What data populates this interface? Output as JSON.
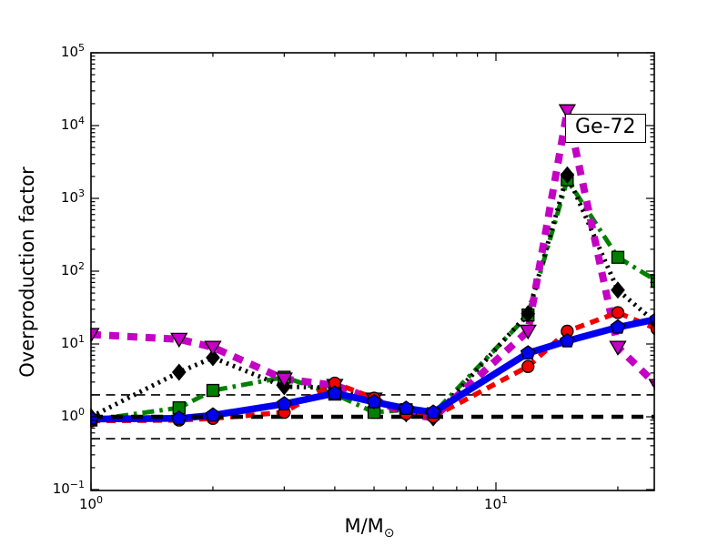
{
  "chart_data": {
    "type": "line",
    "title": "",
    "ylabel": "Overproduction factor",
    "xlabel_main": "M/M",
    "xlabel_sub": "⊙",
    "annotation": "Ge-72",
    "x_scale": "log",
    "y_scale": "log",
    "xlim": [
      1,
      24.6
    ],
    "ylim": [
      0.1,
      100000
    ],
    "x_tick_exponents": [
      0,
      1
    ],
    "y_tick_exponents": [
      5,
      4,
      3,
      2,
      1,
      0,
      -1
    ],
    "x_minor_ticks": [
      2,
      3,
      4,
      5,
      6,
      7,
      8,
      9,
      20
    ],
    "grid": false,
    "legend": "none",
    "x": [
      1,
      1.65,
      2,
      3,
      4,
      5,
      6,
      7,
      12,
      15,
      20,
      25
    ],
    "series": [
      {
        "name": "model-green-dashdot-squares",
        "color": "#008000",
        "linestyle": "dashdot",
        "linewidth": 5,
        "dasharray": "13 6 3.5 6",
        "marker": "square",
        "values": [
          0.9,
          1.33,
          2.3,
          3.5,
          2.05,
          1.15,
          1.25,
          1.1,
          25,
          1800,
          155,
          73
        ]
      },
      {
        "name": "model-black-dotted-diamonds",
        "color": "#000000",
        "linestyle": "dotted",
        "linewidth": 5,
        "dasharray": "2.5 5",
        "marker": "diamond",
        "values": [
          1.0,
          4.1,
          6.5,
          2.6,
          2.5,
          1.65,
          1.1,
          0.97,
          26,
          2100,
          55,
          19
        ]
      },
      {
        "name": "model-magenta-dashed-triangles",
        "color": "#c300c3",
        "linestyle": "dashed",
        "linewidth": 8,
        "dasharray": "11 9",
        "marker": "triangle-down",
        "values": [
          13.5,
          11.6,
          9.0,
          3.3,
          2.7,
          1.75,
          1.1,
          0.97,
          15,
          16000,
          9,
          2.7
        ]
      },
      {
        "name": "model-red-dashed-circles",
        "color": "#f20000",
        "linestyle": "dashed",
        "linewidth": 5.5,
        "dasharray": "10 7",
        "marker": "circle",
        "values": [
          0.88,
          0.9,
          0.95,
          1.15,
          2.9,
          1.8,
          1.1,
          1.0,
          4.9,
          15,
          27,
          16
        ]
      },
      {
        "name": "model-blue-solid-pentagons",
        "color": "#0000ee",
        "linestyle": "solid",
        "linewidth": 7.5,
        "dasharray": "",
        "marker": "pentagon",
        "values": [
          0.93,
          0.95,
          1.05,
          1.5,
          2.1,
          1.6,
          1.3,
          1.15,
          7.5,
          11,
          17,
          22
        ]
      }
    ],
    "reference_lines": [
      {
        "value": 2,
        "style": "thin-dashed",
        "color": "#000000"
      },
      {
        "value": 0.5,
        "style": "thin-dashed",
        "color": "#000000"
      },
      {
        "value": 1,
        "style": "thick-dashed",
        "color": "#000000"
      }
    ]
  }
}
